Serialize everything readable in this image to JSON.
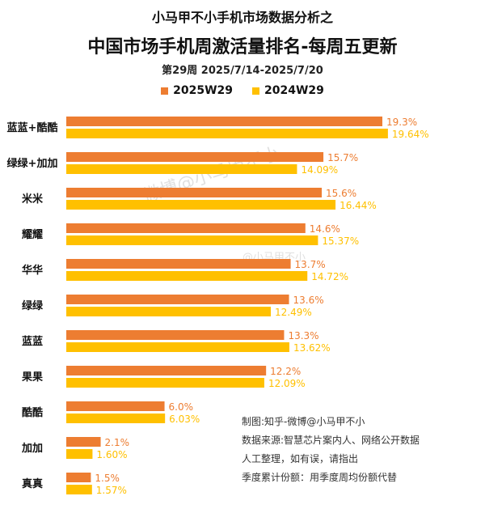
{
  "header": {
    "subtitle_top": "小马甲不小手机市场数据分析之",
    "title": "中国市场手机周激活量排名-每周五更新",
    "period": "第29周 2025/7/14-2025/7/20"
  },
  "chart_data": {
    "type": "bar",
    "orientation": "horizontal",
    "title": "中国市场手机周激活量排名-每周五更新",
    "categories": [
      "蓝蓝+酷酷",
      "绿绿+加加",
      "米米",
      "耀耀",
      "华华",
      "绿绿",
      "蓝蓝",
      "果果",
      "酷酷",
      "加加",
      "真真"
    ],
    "series": [
      {
        "name": "2025W29",
        "color": "#ED7D31",
        "values": [
          19.3,
          15.7,
          15.6,
          14.6,
          13.7,
          13.6,
          13.3,
          12.2,
          6.0,
          2.1,
          1.5
        ],
        "labels": [
          "19.3%",
          "15.7%",
          "15.6%",
          "14.6%",
          "13.7%",
          "13.6%",
          "13.3%",
          "12.2%",
          "6.0%",
          "2.1%",
          "1.5%"
        ]
      },
      {
        "name": "2024W29",
        "color": "#FFC000",
        "values": [
          19.64,
          14.09,
          16.44,
          15.37,
          14.72,
          12.49,
          13.62,
          12.09,
          6.03,
          1.6,
          1.57
        ],
        "labels": [
          "19.64%",
          "14.09%",
          "16.44%",
          "15.37%",
          "14.72%",
          "12.49%",
          "13.62%",
          "12.09%",
          "6.03%",
          "1.60%",
          "1.57%"
        ]
      }
    ],
    "legend": "top",
    "grid": false,
    "unit": "%"
  },
  "notes": [
    "制图:知乎-微博@小马甲不小",
    "数据来源:智慧芯片案内人、网络公开数据",
    "人工整理，如有误，请指出",
    "季度累计份额：用季度周均份额代替"
  ],
  "watermarks": [
    "微博@小马甲不小",
    "@小马甲不小"
  ]
}
